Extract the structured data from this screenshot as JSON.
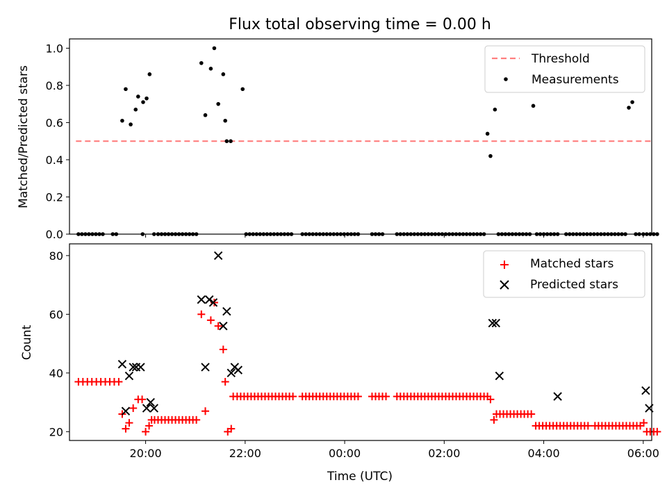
{
  "chart_data": [
    {
      "type": "scatter",
      "title": "Flux total observing time = 0.00 h",
      "xlabel": "",
      "ylabel": "Matched/Predicted stars",
      "xlim": [
        -1.53,
        10.17
      ],
      "ylim": [
        0,
        1.05
      ],
      "yticks": [
        0,
        0.2,
        0.4,
        0.6,
        0.8,
        1.0
      ],
      "ytick_labels": [
        "0.0",
        "0.2",
        "0.4",
        "0.6",
        "0.8",
        "1.0"
      ],
      "xticks": [
        0,
        2,
        4,
        6,
        8,
        10
      ],
      "xtick_labels": [
        "",
        "",
        "",
        "",
        "",
        ""
      ],
      "legend_position": "top-right",
      "series": [
        {
          "name": "Threshold",
          "kind": "line",
          "style": "dashed",
          "color": "#ff7f7f",
          "x": [
            -1.4,
            10.2
          ],
          "y": [
            0.5,
            0.5
          ]
        },
        {
          "name": "Measurements",
          "kind": "scatter",
          "marker": "dot",
          "color": "#000000",
          "x": [
            -1.35,
            -1.28,
            -1.21,
            -1.14,
            -1.07,
            -1.0,
            -0.93,
            -0.86,
            -0.66,
            -0.59,
            -0.47,
            -0.4,
            -0.3,
            -0.2,
            -0.15,
            -0.05,
            0.02,
            0.08,
            0.17,
            -0.06,
            0.25,
            0.32,
            0.39,
            0.46,
            0.53,
            0.6,
            0.67,
            0.74,
            0.81,
            0.88,
            0.95,
            1.02,
            1.12,
            1.2,
            1.31,
            1.38,
            1.46,
            1.56,
            1.6,
            1.63,
            1.71,
            1.95,
            2.02,
            2.09,
            2.16,
            2.23,
            2.3,
            2.37,
            2.44,
            2.51,
            2.58,
            2.65,
            2.72,
            2.79,
            2.86,
            2.93,
            3.15,
            3.22,
            3.29,
            3.36,
            3.43,
            3.5,
            3.57,
            3.64,
            3.71,
            3.78,
            3.85,
            3.92,
            3.99,
            4.06,
            4.13,
            4.2,
            4.27,
            4.55,
            4.62,
            4.69,
            4.76,
            5.05,
            5.12,
            5.19,
            5.26,
            5.33,
            5.4,
            5.47,
            5.54,
            5.61,
            5.68,
            5.75,
            5.82,
            5.89,
            5.96,
            6.03,
            6.1,
            6.17,
            6.24,
            6.31,
            6.38,
            6.45,
            6.52,
            6.59,
            6.66,
            6.73,
            6.8,
            6.87,
            6.93,
            7.02,
            7.09,
            7.16,
            7.23,
            7.3,
            7.37,
            7.44,
            7.51,
            7.58,
            7.65,
            7.72,
            7.79,
            7.86,
            7.93,
            8.0,
            8.07,
            8.14,
            8.21,
            8.28,
            8.45,
            8.52,
            8.59,
            8.66,
            8.73,
            8.8,
            8.87,
            8.94,
            9.01,
            9.08,
            9.15,
            9.22,
            9.29,
            9.36,
            9.43,
            9.5,
            9.57,
            9.64,
            9.71,
            9.78,
            9.85,
            9.92,
            10.0,
            10.07,
            10.14,
            10.21,
            10.28
          ],
          "y": [
            0,
            0,
            0,
            0,
            0,
            0,
            0,
            0,
            0,
            0,
            0.61,
            0.78,
            0.59,
            0.67,
            0.74,
            0.71,
            0.73,
            0.86,
            0.0,
            0,
            0,
            0,
            0,
            0,
            0,
            0,
            0,
            0,
            0,
            0,
            0,
            0,
            0.92,
            0.64,
            0.89,
            1.0,
            0.7,
            0.86,
            0.61,
            0.5,
            0.5,
            0.78,
            0,
            0,
            0,
            0,
            0,
            0,
            0,
            0,
            0,
            0,
            0,
            0,
            0,
            0,
            0,
            0,
            0,
            0,
            0,
            0,
            0,
            0,
            0,
            0,
            0,
            0,
            0,
            0,
            0,
            0,
            0,
            0,
            0,
            0,
            0,
            0,
            0,
            0,
            0,
            0,
            0,
            0,
            0,
            0,
            0,
            0,
            0,
            0,
            0,
            0,
            0,
            0,
            0,
            0,
            0,
            0,
            0,
            0,
            0,
            0,
            0,
            0.54,
            0.42,
            0.67,
            0,
            0,
            0,
            0,
            0,
            0,
            0,
            0,
            0,
            0,
            0.69,
            0,
            0,
            0,
            0,
            0,
            0,
            0,
            0,
            0,
            0,
            0,
            0,
            0,
            0,
            0,
            0,
            0,
            0,
            0,
            0,
            0,
            0,
            0,
            0,
            0,
            0.68,
            0.71,
            0,
            0,
            0,
            0,
            0,
            0,
            0
          ]
        }
      ]
    },
    {
      "type": "scatter",
      "title": "",
      "xlabel": "Time (UTC)",
      "ylabel": "Count",
      "xlim": [
        -1.53,
        10.17
      ],
      "ylim": [
        17,
        84
      ],
      "yticks": [
        20,
        40,
        60,
        80
      ],
      "ytick_labels": [
        "20",
        "40",
        "60",
        "80"
      ],
      "xticks": [
        0,
        2,
        4,
        6,
        8,
        10
      ],
      "xtick_labels": [
        "20:00",
        "22:00",
        "00:00",
        "02:00",
        "04:00",
        "06:00"
      ],
      "legend_position": "top-right",
      "series": [
        {
          "name": "Matched stars",
          "kind": "scatter",
          "marker": "plus",
          "color": "#ff0000",
          "x": [
            -1.35,
            -1.26,
            -1.17,
            -1.08,
            -0.99,
            -0.9,
            -0.81,
            -0.72,
            -0.63,
            -0.54,
            -0.47,
            -0.4,
            -0.33,
            -0.25,
            -0.15,
            -0.07,
            0.0,
            0.07,
            0.12,
            0.18,
            0.25,
            0.32,
            0.39,
            0.46,
            0.53,
            0.6,
            0.67,
            0.74,
            0.81,
            0.88,
            0.95,
            1.02,
            1.12,
            1.2,
            1.31,
            1.38,
            1.46,
            1.56,
            1.6,
            1.65,
            1.72,
            1.76,
            1.84,
            1.91,
            1.98,
            2.05,
            2.12,
            2.19,
            2.26,
            2.33,
            2.4,
            2.47,
            2.54,
            2.61,
            2.68,
            2.75,
            2.82,
            2.89,
            2.96,
            3.15,
            3.22,
            3.29,
            3.36,
            3.43,
            3.5,
            3.57,
            3.64,
            3.71,
            3.78,
            3.85,
            3.92,
            3.99,
            4.06,
            4.13,
            4.2,
            4.27,
            4.55,
            4.62,
            4.69,
            4.76,
            4.83,
            5.05,
            5.12,
            5.19,
            5.26,
            5.33,
            5.4,
            5.47,
            5.54,
            5.61,
            5.68,
            5.75,
            5.82,
            5.89,
            5.96,
            6.03,
            6.1,
            6.17,
            6.24,
            6.31,
            6.38,
            6.45,
            6.52,
            6.59,
            6.66,
            6.73,
            6.8,
            6.87,
            6.93,
            7.0,
            7.05,
            7.12,
            7.19,
            7.26,
            7.33,
            7.4,
            7.47,
            7.54,
            7.61,
            7.68,
            7.75,
            7.84,
            7.91,
            7.98,
            8.05,
            8.12,
            8.19,
            8.26,
            8.33,
            8.4,
            8.47,
            8.54,
            8.61,
            8.68,
            8.75,
            8.82,
            8.89,
            9.03,
            9.1,
            9.17,
            9.24,
            9.31,
            9.38,
            9.45,
            9.52,
            9.59,
            9.66,
            9.73,
            9.8,
            9.87,
            9.94,
            10.01,
            10.07,
            10.14,
            10.21,
            10.28
          ],
          "y": [
            37,
            37,
            37,
            37,
            37,
            37,
            37,
            37,
            37,
            37,
            26,
            21,
            23,
            28,
            31,
            31,
            20,
            22,
            24,
            24,
            24,
            24,
            24,
            24,
            24,
            24,
            24,
            24,
            24,
            24,
            24,
            24,
            60,
            27,
            58,
            64,
            56,
            48,
            37,
            20,
            21,
            32,
            32,
            32,
            32,
            32,
            32,
            32,
            32,
            32,
            32,
            32,
            32,
            32,
            32,
            32,
            32,
            32,
            32,
            32,
            32,
            32,
            32,
            32,
            32,
            32,
            32,
            32,
            32,
            32,
            32,
            32,
            32,
            32,
            32,
            32,
            32,
            32,
            32,
            32,
            32,
            32,
            32,
            32,
            32,
            32,
            32,
            32,
            32,
            32,
            32,
            32,
            32,
            32,
            32,
            32,
            32,
            32,
            32,
            32,
            32,
            32,
            32,
            32,
            32,
            32,
            32,
            32,
            31,
            24,
            26,
            26,
            26,
            26,
            26,
            26,
            26,
            26,
            26,
            26,
            26,
            22,
            22,
            22,
            22,
            22,
            22,
            22,
            22,
            22,
            22,
            22,
            22,
            22,
            22,
            22,
            22,
            22,
            22,
            22,
            22,
            22,
            22,
            22,
            22,
            22,
            22,
            22,
            22,
            22,
            22,
            23,
            20,
            20,
            20,
            20
          ]
        },
        {
          "name": "Predicted stars",
          "kind": "scatter",
          "marker": "x",
          "color": "#000000",
          "x": [
            -0.47,
            -0.4,
            -0.33,
            -0.25,
            -0.19,
            -0.1,
            0.02,
            0.1,
            0.17,
            1.12,
            1.2,
            1.28,
            1.36,
            1.46,
            1.56,
            1.63,
            1.72,
            1.79,
            1.86,
            6.97,
            7.04,
            7.11,
            8.28,
            10.05,
            10.12
          ],
          "y": [
            43,
            27,
            39,
            42,
            42,
            42,
            28,
            30,
            28,
            65,
            42,
            65,
            64,
            80,
            56,
            61,
            40,
            42,
            41,
            57,
            57,
            39,
            32,
            34,
            28
          ]
        }
      ]
    }
  ]
}
